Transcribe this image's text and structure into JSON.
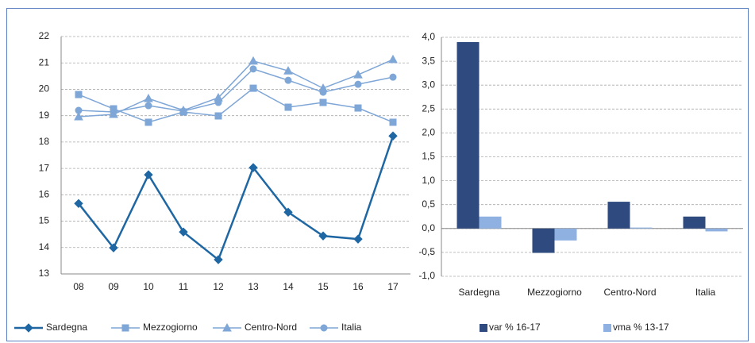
{
  "chart_data": [
    {
      "type": "line",
      "categories": [
        "08",
        "09",
        "10",
        "11",
        "12",
        "13",
        "14",
        "15",
        "16",
        "17"
      ],
      "ylim": [
        13,
        22
      ],
      "yticks": [
        13,
        14,
        15,
        16,
        17,
        18,
        19,
        20,
        21,
        22
      ],
      "grid": true,
      "series": [
        {
          "name": "Sardegna",
          "color": "#1f67a3",
          "marker": "diamond",
          "values": [
            15.67,
            13.99,
            16.76,
            14.59,
            13.54,
            17.03,
            15.34,
            14.44,
            14.32,
            18.23
          ]
        },
        {
          "name": "Mezzogiorno",
          "color": "#7ea6d6",
          "marker": "square",
          "values": [
            19.8,
            19.26,
            18.75,
            19.14,
            18.99,
            20.04,
            19.32,
            19.5,
            19.29,
            18.75
          ]
        },
        {
          "name": "Centro-Nord",
          "color": "#7ea6d6",
          "marker": "triangle",
          "values": [
            18.96,
            19.05,
            19.65,
            19.2,
            19.68,
            21.07,
            20.7,
            20.04,
            20.55,
            21.13
          ]
        },
        {
          "name": "Italia",
          "color": "#7ea6d6",
          "marker": "circle",
          "values": [
            19.2,
            19.14,
            19.38,
            19.17,
            19.5,
            20.77,
            20.34,
            19.89,
            20.19,
            20.46
          ]
        }
      ]
    },
    {
      "type": "bar",
      "categories": [
        "Sardegna",
        "Mezzogiorno",
        "Centro-Nord",
        "Italia"
      ],
      "ylim": [
        -1,
        4
      ],
      "grid": true,
      "yticks": [
        {
          "value": -1,
          "label": "-1,0"
        },
        {
          "value": -0.5,
          "label": "-0,5"
        },
        {
          "value": 0,
          "label": "0,0"
        },
        {
          "value": 0.5,
          "label": "0,5"
        },
        {
          "value": 1,
          "label": "1,0"
        },
        {
          "value": 1.5,
          "label": "1,5"
        },
        {
          "value": 2,
          "label": "2,0"
        },
        {
          "value": 2.5,
          "label": "2,5"
        },
        {
          "value": 3,
          "label": "3,0"
        },
        {
          "value": 3.5,
          "label": "3,5"
        },
        {
          "value": 4,
          "label": "4,0"
        }
      ],
      "series": [
        {
          "name": "var % 16-17",
          "color": "#2e4a7e",
          "values": [
            3.9,
            -0.51,
            0.56,
            0.25
          ]
        },
        {
          "name": "vma % 13-17",
          "color": "#8fb1e1",
          "values": [
            0.25,
            -0.25,
            0.02,
            -0.06
          ]
        }
      ]
    }
  ]
}
